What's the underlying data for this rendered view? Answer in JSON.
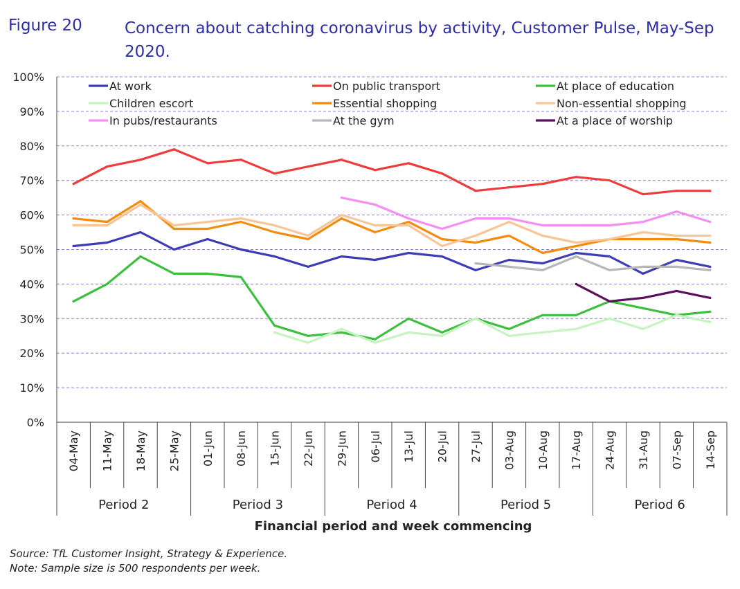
{
  "figure_label": "Figure 20",
  "figure_title": "Concern about catching coronavirus by activity, Customer Pulse, May-Sep 2020.",
  "notes": {
    "source": "Source: TfL Customer Insight, Strategy & Experience.",
    "note": "Note: Sample size is 500 respondents per week."
  },
  "chart_data": {
    "type": "line",
    "title": "Concern about catching coronavirus by activity, Customer Pulse, May-Sep 2020.",
    "xlabel": "Financial period and week commencing",
    "ylabel": "",
    "ylim": [
      0,
      100
    ],
    "yticks": [
      "0%",
      "10%",
      "20%",
      "30%",
      "40%",
      "50%",
      "60%",
      "70%",
      "80%",
      "90%",
      "100%"
    ],
    "grid": true,
    "legend_position": "top",
    "categories": [
      "04-May",
      "11-May",
      "18-May",
      "25-May",
      "01-Jun",
      "08-Jun",
      "15-Jun",
      "22-Jun",
      "29-Jun",
      "06-Jul",
      "13-Jul",
      "20-Jul",
      "27-Jul",
      "03-Aug",
      "10-Aug",
      "17-Aug",
      "24-Aug",
      "31-Aug",
      "07-Sep",
      "14-Sep"
    ],
    "periods": [
      {
        "label": "Period 2",
        "start": 0,
        "end": 3
      },
      {
        "label": "Period 3",
        "start": 4,
        "end": 7
      },
      {
        "label": "Period 4",
        "start": 8,
        "end": 11
      },
      {
        "label": "Period 5",
        "start": 12,
        "end": 15
      },
      {
        "label": "Period 6",
        "start": 16,
        "end": 19
      }
    ],
    "series": [
      {
        "name": "At work",
        "color": "#3c3cb4",
        "values": [
          51,
          52,
          55,
          50,
          53,
          50,
          48,
          45,
          48,
          47,
          49,
          48,
          44,
          47,
          46,
          49,
          48,
          43,
          47,
          45
        ]
      },
      {
        "name": "On public transport",
        "color": "#ee3b3b",
        "values": [
          69,
          74,
          76,
          79,
          75,
          76,
          72,
          74,
          76,
          73,
          75,
          72,
          67,
          68,
          69,
          71,
          70,
          66,
          67,
          67
        ]
      },
      {
        "name": "At place of education",
        "color": "#3cbf3c",
        "values": [
          35,
          40,
          48,
          43,
          43,
          42,
          28,
          25,
          26,
          24,
          30,
          26,
          30,
          27,
          31,
          31,
          35,
          33,
          31,
          32
        ]
      },
      {
        "name": "Children escort",
        "color": "#c6f3c0",
        "values": [
          null,
          null,
          null,
          null,
          null,
          null,
          26,
          23,
          27,
          23,
          26,
          25,
          30,
          25,
          26,
          27,
          30,
          27,
          31,
          29
        ]
      },
      {
        "name": "Essential shopping",
        "color": "#f28c0f",
        "values": [
          59,
          58,
          64,
          56,
          56,
          58,
          55,
          53,
          59,
          55,
          58,
          53,
          52,
          54,
          49,
          51,
          53,
          53,
          53,
          52
        ]
      },
      {
        "name": "Non-essential shopping",
        "color": "#f9c596",
        "values": [
          57,
          57,
          63,
          57,
          58,
          59,
          57,
          54,
          60,
          57,
          57,
          51,
          54,
          58,
          54,
          52,
          53,
          55,
          54,
          54
        ]
      },
      {
        "name": "In pubs/restaurants",
        "color": "#f58ef0",
        "values": [
          null,
          null,
          null,
          null,
          null,
          null,
          null,
          null,
          65,
          63,
          59,
          56,
          59,
          59,
          57,
          57,
          57,
          58,
          61,
          58
        ]
      },
      {
        "name": "At the gym",
        "color": "#b7b7b7",
        "values": [
          null,
          null,
          null,
          null,
          null,
          null,
          null,
          null,
          null,
          null,
          null,
          null,
          46,
          45,
          44,
          48,
          44,
          45,
          45,
          44
        ]
      },
      {
        "name": "At a place of worship",
        "color": "#5c0f5c",
        "values": [
          null,
          null,
          null,
          null,
          null,
          null,
          null,
          null,
          null,
          null,
          null,
          null,
          null,
          null,
          null,
          40,
          35,
          36,
          38,
          36
        ]
      }
    ]
  }
}
